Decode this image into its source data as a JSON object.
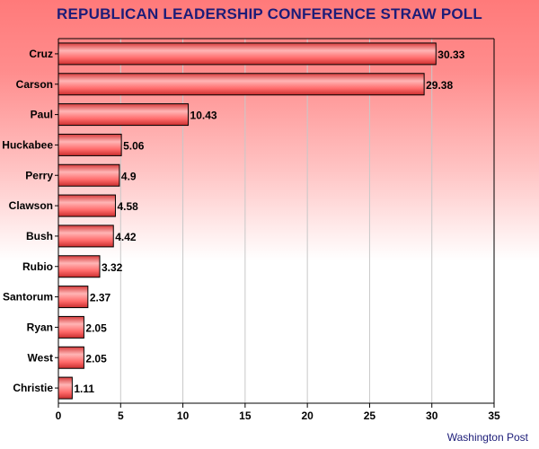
{
  "chart_data": {
    "type": "bar",
    "orientation": "horizontal",
    "title": "REPUBLICAN LEADERSHIP CONFERENCE STRAW POLL",
    "source": "Washington Post",
    "categories": [
      "Cruz",
      "Carson",
      "Paul",
      "Huckabee",
      "Perry",
      "Clawson",
      "Bush",
      "Rubio",
      "Santorum",
      "Ryan",
      "West",
      "Christie"
    ],
    "values": [
      30.33,
      29.38,
      10.43,
      5.06,
      4.9,
      4.58,
      4.42,
      3.32,
      2.37,
      2.05,
      2.05,
      1.11
    ],
    "value_labels": [
      "30.33",
      "29.38",
      "10.43",
      "5.06",
      "4.9",
      "4.58",
      "4.42",
      "3.32",
      "2.37",
      "2.05",
      "2.05",
      "1.11"
    ],
    "xlim": [
      0,
      35
    ],
    "xticks": [
      0,
      5,
      10,
      15,
      20,
      25,
      30,
      35
    ],
    "xlabel": "",
    "ylabel": "",
    "grid": "vertical",
    "legend": "none",
    "colors": {
      "bar": "#ff6b6b",
      "bar_highlight": "#ffb5b5",
      "bar_shade": "#c92e2e",
      "bar_edge": "#000000",
      "title": "#1c1c78",
      "grid": "#c8c8c8"
    }
  }
}
